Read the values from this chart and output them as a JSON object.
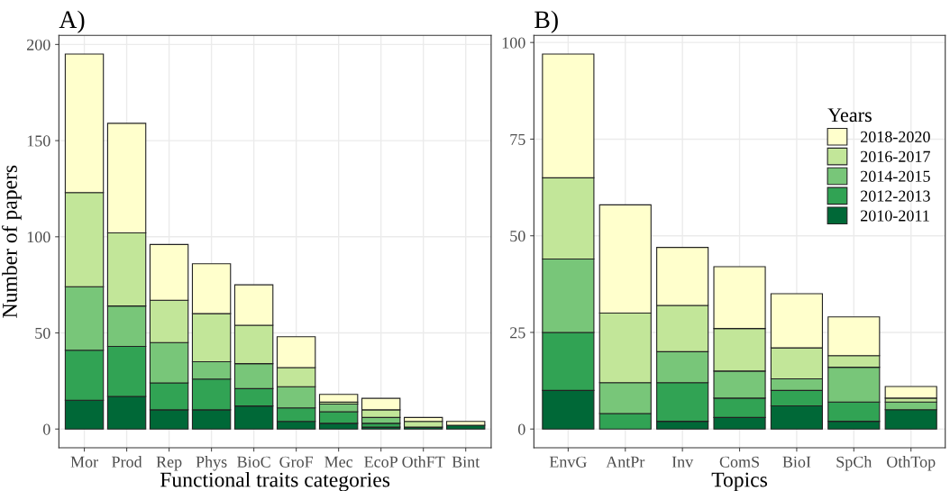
{
  "chart_data": [
    {
      "type": "bar",
      "title": "A)",
      "xlabel": "Functional traits categories",
      "ylabel": "Number of papers",
      "stacked": true,
      "grid": true,
      "legend": false,
      "categories": [
        "Mor",
        "Prod",
        "Rep",
        "Phys",
        "BioC",
        "GroF",
        "Mec",
        "EcoP",
        "OthFT",
        "Bint"
      ],
      "ylim": [
        -9.75,
        204.75
      ],
      "yticks": [
        0,
        50,
        100,
        150,
        200
      ],
      "series": [
        {
          "color": "#006837",
          "values": [
            15,
            17,
            10,
            10,
            12,
            4,
            3,
            1,
            1,
            2
          ]
        },
        {
          "color": "#31a354",
          "values": [
            26,
            26,
            14,
            16,
            9,
            7,
            6,
            2,
            0,
            0
          ]
        },
        {
          "color": "#78c679",
          "values": [
            33,
            21,
            21,
            9,
            13,
            11,
            4,
            3,
            0,
            0
          ]
        },
        {
          "color": "#c2e699",
          "values": [
            49,
            38,
            22,
            25,
            20,
            10,
            1,
            4,
            3,
            0
          ]
        },
        {
          "color": "#ffffcc",
          "values": [
            72,
            57,
            29,
            26,
            21,
            16,
            4,
            6,
            2,
            2
          ]
        }
      ]
    },
    {
      "type": "bar",
      "title": "B)",
      "xlabel": "Topics",
      "stacked": true,
      "grid": true,
      "legend": "top right",
      "legend_title": "Years",
      "categories": [
        "EnvG",
        "AntPr",
        "Inv",
        "ComS",
        "BioI",
        "SpCh",
        "OthTop"
      ],
      "ylim": [
        -4.85,
        101.85
      ],
      "yticks": [
        0,
        25,
        50,
        75,
        100
      ],
      "series": [
        {
          "name": "2010-2011",
          "color": "#006837",
          "values": [
            10,
            0,
            2,
            3,
            6,
            2,
            5
          ]
        },
        {
          "name": "2012-2013",
          "color": "#31a354",
          "values": [
            15,
            4,
            10,
            5,
            4,
            5,
            0
          ]
        },
        {
          "name": "2014-2015",
          "color": "#78c679",
          "values": [
            19,
            8,
            8,
            7,
            3,
            9,
            2
          ]
        },
        {
          "name": "2016-2017",
          "color": "#c2e699",
          "values": [
            21,
            18,
            12,
            11,
            8,
            3,
            1
          ]
        },
        {
          "name": "2018-2020",
          "color": "#ffffcc",
          "values": [
            32,
            28,
            15,
            16,
            14,
            10,
            3
          ]
        }
      ]
    }
  ]
}
